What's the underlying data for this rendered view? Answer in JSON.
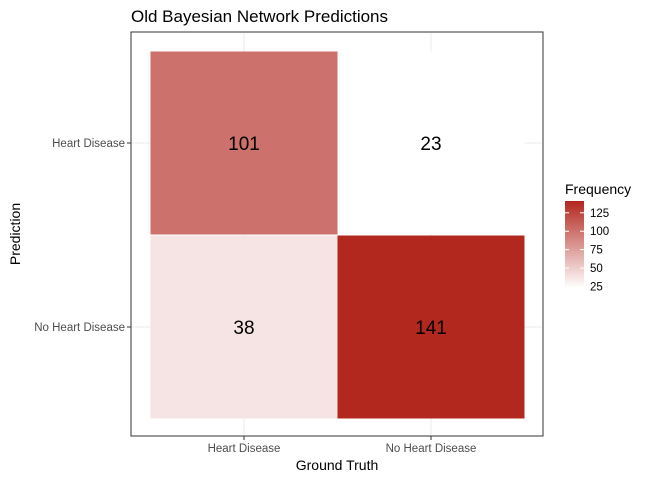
{
  "chart_data": {
    "type": "heatmap",
    "title": "Old Bayesian Network Predictions",
    "xlabel": "Ground Truth",
    "ylabel": "Prediction",
    "x_categories": [
      "Heart Disease",
      "No Heart Disease"
    ],
    "y_categories": [
      "Heart Disease",
      "No Heart Disease"
    ],
    "cells": [
      {
        "x": "Heart Disease",
        "y": "Heart Disease",
        "value": 101,
        "label": "101"
      },
      {
        "x": "No Heart Disease",
        "y": "Heart Disease",
        "value": 23,
        "label": "23"
      },
      {
        "x": "Heart Disease",
        "y": "No Heart Disease",
        "value": 38,
        "label": "38"
      },
      {
        "x": "No Heart Disease",
        "y": "No Heart Disease",
        "value": 141,
        "label": "141"
      }
    ],
    "legend": {
      "title": "Frequency",
      "ticks": [
        "25",
        "50",
        "75",
        "100",
        "125"
      ],
      "range": [
        23,
        141
      ],
      "low_color": "#ffffff",
      "high_color": "#b2281f",
      "position": "right"
    },
    "grid": true
  }
}
